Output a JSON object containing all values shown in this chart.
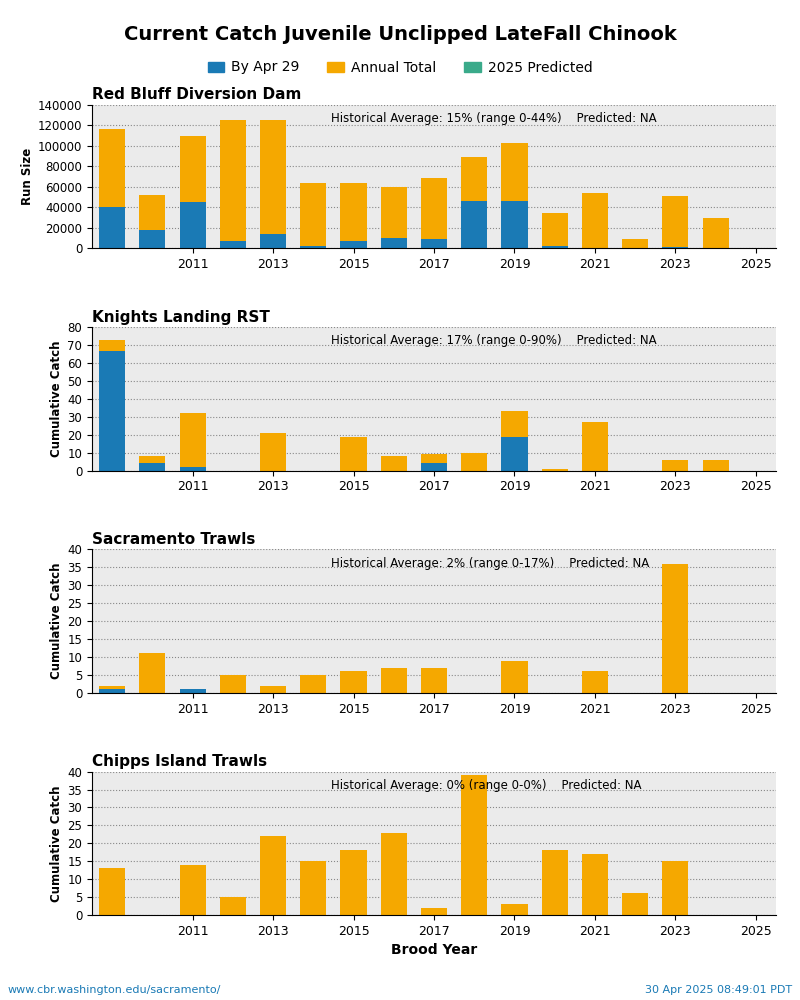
{
  "title": "Current Catch Juvenile Unclipped LateFall Chinook",
  "legend_labels": [
    "By Apr 29",
    "Annual Total",
    "2025 Predicted"
  ],
  "legend_colors": [
    "#1a7ab5",
    "#f5a800",
    "#3aaa8a"
  ],
  "footer_left": "www.cbr.washington.edu/sacramento/",
  "footer_right": "30 Apr 2025 08:49:01 PDT",
  "panels": [
    {
      "title": "Red Bluff Diversion Dam",
      "ylabel": "Run Size",
      "annotation": "Historical Average: 15% (range 0-44%)    Predicted: NA",
      "ylim": [
        0,
        140000
      ],
      "yticks": [
        0,
        20000,
        40000,
        60000,
        80000,
        100000,
        120000,
        140000
      ],
      "brood_years": [
        2009,
        2010,
        2011,
        2012,
        2013,
        2014,
        2015,
        2016,
        2017,
        2018,
        2019,
        2020,
        2021,
        2022,
        2023,
        2024
      ],
      "blue_vals": [
        40000,
        18000,
        45000,
        7500,
        14000,
        2000,
        7000,
        10000,
        9000,
        46000,
        46000,
        2000,
        500,
        500,
        1800,
        0
      ],
      "orange_vals": [
        77000,
        34000,
        65000,
        118000,
        111000,
        62000,
        57000,
        50000,
        60000,
        43000,
        57000,
        33000,
        54000,
        9000,
        49000,
        30000
      ],
      "green_vals": [
        0,
        0,
        0,
        0,
        0,
        0,
        0,
        0,
        0,
        0,
        0,
        0,
        0,
        0,
        0,
        0
      ]
    },
    {
      "title": "Knights Landing RST",
      "ylabel": "Cumulative Catch",
      "annotation": "Historical Average: 17% (range 0-90%)    Predicted: NA",
      "ylim": [
        0,
        80
      ],
      "yticks": [
        0,
        10,
        20,
        30,
        40,
        50,
        60,
        70,
        80
      ],
      "brood_years": [
        2009,
        2010,
        2011,
        2012,
        2013,
        2014,
        2015,
        2016,
        2017,
        2018,
        2019,
        2020,
        2021,
        2022,
        2023,
        2024
      ],
      "blue_vals": [
        67,
        4,
        2,
        0,
        0,
        0,
        0,
        0,
        4,
        0,
        19,
        0,
        0,
        0,
        0,
        0
      ],
      "orange_vals": [
        6,
        4,
        30,
        0,
        21,
        0,
        19,
        8,
        5,
        10,
        14,
        1,
        27,
        0,
        6,
        6
      ],
      "green_vals": [
        0,
        0,
        0,
        0,
        0,
        0,
        0,
        0,
        0,
        0,
        0,
        0,
        0,
        0,
        0,
        0
      ]
    },
    {
      "title": "Sacramento Trawls",
      "ylabel": "Cumulative Catch",
      "annotation": "Historical Average: 2% (range 0-17%)    Predicted: NA",
      "ylim": [
        0,
        40
      ],
      "yticks": [
        0,
        5,
        10,
        15,
        20,
        25,
        30,
        35,
        40
      ],
      "brood_years": [
        2009,
        2010,
        2011,
        2012,
        2013,
        2014,
        2015,
        2016,
        2017,
        2018,
        2019,
        2020,
        2021,
        2022,
        2023,
        2024
      ],
      "blue_vals": [
        1,
        0,
        1,
        0,
        0,
        0,
        0,
        0,
        0,
        0,
        0,
        0,
        0,
        0,
        0,
        0
      ],
      "orange_vals": [
        1,
        11,
        0,
        5,
        2,
        5,
        6,
        7,
        7,
        0,
        9,
        0,
        6,
        0,
        36,
        0
      ],
      "green_vals": [
        0,
        0,
        0,
        0,
        0,
        0,
        0,
        0,
        0,
        0,
        0,
        0,
        0,
        0,
        0,
        0
      ]
    },
    {
      "title": "Chipps Island Trawls",
      "ylabel": "Cumulative Catch",
      "annotation": "Historical Average: 0% (range 0-0%)    Predicted: NA",
      "ylim": [
        0,
        40
      ],
      "yticks": [
        0,
        5,
        10,
        15,
        20,
        25,
        30,
        35,
        40
      ],
      "brood_years": [
        2009,
        2010,
        2011,
        2012,
        2013,
        2014,
        2015,
        2016,
        2017,
        2018,
        2019,
        2020,
        2021,
        2022,
        2023,
        2024
      ],
      "blue_vals": [
        0,
        0,
        0,
        0,
        0,
        0,
        0,
        0,
        0,
        0,
        0,
        0,
        0,
        0,
        0,
        0
      ],
      "orange_vals": [
        13,
        0,
        14,
        5,
        22,
        15,
        18,
        23,
        2,
        39,
        3,
        18,
        17,
        6,
        15,
        0
      ],
      "green_vals": [
        0,
        0,
        0,
        0,
        0,
        0,
        0,
        0,
        0,
        0,
        0,
        0,
        0,
        0,
        0,
        0
      ]
    }
  ],
  "xtick_positions": [
    2011,
    2013,
    2015,
    2017,
    2019,
    2021,
    2023,
    2025
  ],
  "xlim": [
    2008.5,
    2025.5
  ]
}
